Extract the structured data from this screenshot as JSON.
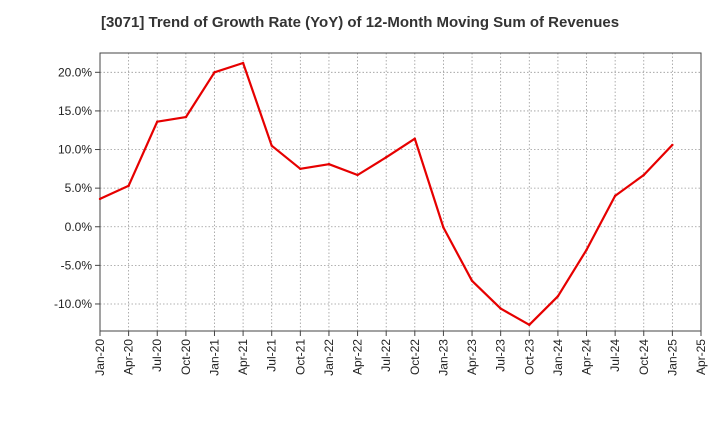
{
  "chart_data": {
    "type": "line",
    "title": "[3071]  Trend of Growth Rate (YoY) of 12-Month Moving Sum of Revenues",
    "xlabel": "",
    "ylabel": "",
    "x_tick_labels": [
      "Jan-20",
      "Apr-20",
      "Jul-20",
      "Oct-20",
      "Jan-21",
      "Apr-21",
      "Jul-21",
      "Oct-21",
      "Jan-22",
      "Apr-22",
      "Jul-22",
      "Oct-22",
      "Jan-23",
      "Apr-23",
      "Jul-23",
      "Oct-23",
      "Jan-24",
      "Apr-24",
      "Jul-24",
      "Oct-24",
      "Jan-25",
      "Apr-25"
    ],
    "y_ticks": [
      -10,
      -5,
      0,
      5,
      10,
      15,
      20
    ],
    "y_tick_labels": [
      "-10.0%",
      "-5.0%",
      "0.0%",
      "5.0%",
      "10.0%",
      "15.0%",
      "20.0%"
    ],
    "ylim": [
      -13.5,
      22.5
    ],
    "grid": true,
    "series": [
      {
        "color": "#e60000",
        "x": [
          "Jan-20",
          "Apr-20",
          "Jul-20",
          "Oct-20",
          "Jan-21",
          "Apr-21",
          "Jul-21",
          "Oct-21",
          "Jan-22",
          "Apr-22",
          "Jul-22",
          "Oct-22",
          "Jan-23",
          "Apr-23",
          "Jul-23",
          "Oct-23",
          "Jan-24",
          "Apr-24",
          "Jul-24",
          "Oct-24",
          "Jan-25"
        ],
        "values": [
          3.6,
          5.3,
          13.6,
          14.2,
          20.0,
          21.2,
          10.5,
          7.5,
          8.1,
          6.7,
          9.0,
          11.4,
          -0.1,
          -7.0,
          -10.6,
          -12.7,
          -9.0,
          -3.0,
          4.0,
          6.7,
          10.6
        ]
      }
    ]
  }
}
